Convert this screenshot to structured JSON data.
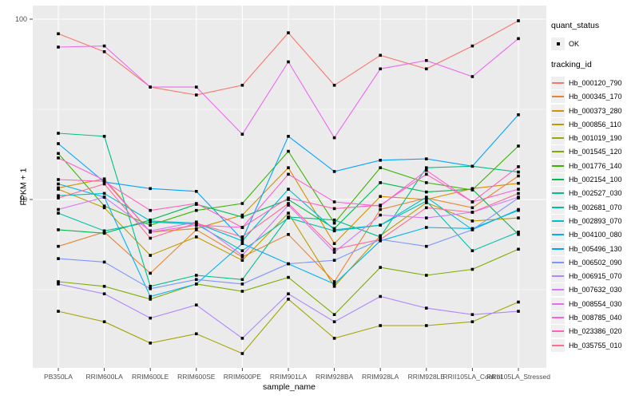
{
  "chart_data": {
    "type": "line",
    "title": "",
    "xlabel": "sample_name",
    "ylabel": "FPKM + 1",
    "yscale": "log10",
    "ylim": [
      1.16,
      119
    ],
    "yticks": [
      100,
      10
    ],
    "minor_gridlines": [
      31.62,
      3.162
    ],
    "grid": true,
    "legend_position": "right",
    "point_marker": "small-black-square",
    "quant_status_legend": {
      "title": "quant_status",
      "items": [
        {
          "label": "OK"
        }
      ]
    },
    "series_legend_title": "tracking_id",
    "categories": [
      "PB350LA",
      "RRIM600LA",
      "RRIM600LE",
      "RRIM600SE",
      "RRIM600PE",
      "RRIM901LA",
      "RRIM928BA",
      "RRIM928LA",
      "RRIM928LE",
      "RRII105LA_Control",
      "RRII105LA_Stressed"
    ],
    "series": [
      {
        "name": "Hb_000120_790",
        "color": "#F8766D",
        "values": [
          83,
          66,
          42,
          38,
          43,
          84,
          43,
          63,
          53,
          71,
          98
        ]
      },
      {
        "name": "Hb_000345_170",
        "color": "#EA8331",
        "values": [
          5.5,
          6.6,
          3.9,
          6.8,
          4.8,
          6.4,
          3.5,
          8.8,
          10.2,
          9.0,
          13.5
        ]
      },
      {
        "name": "Hb_000373_280",
        "color": "#D89000",
        "values": [
          11.6,
          13.0,
          6.6,
          6.9,
          8.2,
          15.0,
          5.7,
          10.4,
          10.0,
          11.5,
          12.3
        ]
      },
      {
        "name": "Hb_000856_110",
        "color": "#C09B00",
        "values": [
          11.4,
          9.0,
          4.9,
          6.2,
          4.6,
          8.4,
          3.3,
          6.3,
          9.6,
          7.6,
          7.9
        ]
      },
      {
        "name": "Hb_001019_190",
        "color": "#A3A500",
        "values": [
          2.4,
          2.1,
          1.6,
          1.8,
          1.4,
          2.8,
          1.7,
          2.0,
          2.0,
          2.1,
          2.7
        ]
      },
      {
        "name": "Hb_001545_120",
        "color": "#7CAE00",
        "values": [
          3.5,
          3.3,
          2.8,
          3.4,
          3.1,
          3.7,
          2.3,
          4.2,
          3.8,
          4.1,
          5.3
        ]
      },
      {
        "name": "Hb_001776_140",
        "color": "#39B600",
        "values": [
          18.0,
          9.2,
          7.2,
          8.7,
          9.5,
          18.5,
          7.4,
          15.0,
          12.4,
          11.3,
          19.8
        ]
      },
      {
        "name": "Hb_002154_100",
        "color": "#00BB4E",
        "values": [
          6.8,
          6.5,
          7.7,
          9.4,
          8.0,
          10.0,
          6.9,
          12.4,
          11.0,
          11.4,
          6.4
        ]
      },
      {
        "name": "Hb_002527_030",
        "color": "#00C08B",
        "values": [
          23.3,
          22.4,
          3.3,
          3.8,
          3.6,
          8.0,
          7.7,
          6.2,
          15.0,
          15.3,
          14.2
        ]
      },
      {
        "name": "Hb_002681_070",
        "color": "#00C1A7",
        "values": [
          8.4,
          6.7,
          7.5,
          7.3,
          5.2,
          7.9,
          6.7,
          7.2,
          9.8,
          5.2,
          6.6
        ]
      },
      {
        "name": "Hb_002893_070",
        "color": "#00BDD0",
        "values": [
          10.5,
          10.8,
          7.6,
          7.4,
          5.9,
          11.4,
          6.8,
          7.2,
          10.3,
          6.8,
          8.8
        ]
      },
      {
        "name": "Hb_004100_080",
        "color": "#00B2F3",
        "values": [
          12.2,
          10.3,
          2.9,
          3.4,
          5.7,
          4.4,
          3.4,
          5.9,
          7.0,
          6.9,
          8.7
        ]
      },
      {
        "name": "Hb_005496_130",
        "color": "#00A5FF",
        "values": [
          20.4,
          12.5,
          11.5,
          11.1,
          6.0,
          22.4,
          14.3,
          16.5,
          16.8,
          15.3,
          29.5
        ]
      },
      {
        "name": "Hb_006502_090",
        "color": "#7C96FF",
        "values": [
          4.7,
          4.5,
          3.2,
          3.6,
          3.4,
          4.4,
          4.6,
          6.0,
          5.5,
          6.8,
          10.2
        ]
      },
      {
        "name": "Hb_006915_070",
        "color": "#AE87FF",
        "values": [
          3.4,
          3.0,
          2.2,
          2.6,
          1.7,
          3.0,
          2.1,
          2.9,
          2.5,
          2.3,
          2.4
        ]
      },
      {
        "name": "Hb_007632_030",
        "color": "#D277FF",
        "values": [
          8.8,
          10.3,
          6.7,
          7.5,
          4.9,
          9.3,
          5.1,
          8.2,
          7.9,
          8.5,
          10.3
        ]
      },
      {
        "name": "Hb_008554_030",
        "color": "#EC69EF",
        "values": [
          70,
          71,
          42,
          42,
          23,
          58,
          22,
          53,
          59,
          48,
          78
        ]
      },
      {
        "name": "Hb_008785_040",
        "color": "#FB61D7",
        "values": [
          17.0,
          12.8,
          6.6,
          7.2,
          7.0,
          13.8,
          9.7,
          9.2,
          14.5,
          9.7,
          11.4
        ]
      },
      {
        "name": "Hb_023386_020",
        "color": "#FF62BC",
        "values": [
          12.9,
          12.6,
          8.7,
          9.5,
          7.0,
          10.2,
          8.9,
          9.3,
          13.8,
          9.7,
          15.2
        ]
      },
      {
        "name": "Hb_035755_010",
        "color": "#FF6C91",
        "values": [
          10.2,
          12.2,
          6.1,
          7.4,
          6.2,
          9.5,
          5.3,
          6.0,
          9.0,
          8.5,
          10.8
        ]
      }
    ],
    "style": {
      "panel_bg": "#EBEBEB",
      "grid_color": "#FFFFFF",
      "tick_color": "#333333",
      "axis_text_color": "#4d4d4d",
      "point_color": "#000000"
    }
  }
}
